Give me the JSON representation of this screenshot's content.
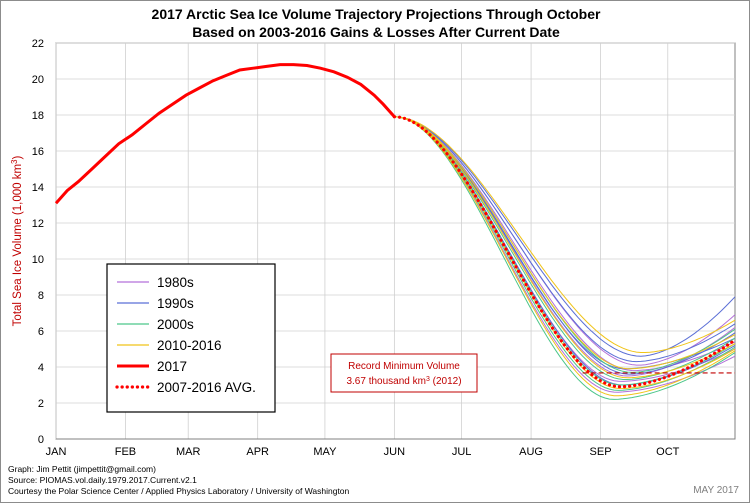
{
  "chart_data": {
    "type": "line",
    "title": [
      "2017 Arctic Sea Ice Volume Trajectory Projections Through October",
      "Based on 2003-2016 Gains & Losses After Current Date"
    ],
    "xlabel": "",
    "ylabel": "Total Sea Ice Volume  (1,000 km³)",
    "ylim": [
      0,
      22
    ],
    "yticks": [
      0,
      2,
      4,
      6,
      8,
      10,
      12,
      14,
      16,
      18,
      20,
      22
    ],
    "xlim": [
      0,
      303
    ],
    "xticks": [
      {
        "label": "JAN",
        "day": 0
      },
      {
        "label": "FEB",
        "day": 31
      },
      {
        "label": "MAR",
        "day": 59
      },
      {
        "label": "APR",
        "day": 90
      },
      {
        "label": "MAY",
        "day": 120
      },
      {
        "label": "JUN",
        "day": 151
      },
      {
        "label": "JUL",
        "day": 181
      },
      {
        "label": "AUG",
        "day": 212
      },
      {
        "label": "SEP",
        "day": 243
      },
      {
        "label": "OCT",
        "day": 273
      }
    ],
    "series_2017": {
      "name": "2017",
      "color": "#ff0000",
      "points": [
        [
          0,
          13.1
        ],
        [
          5,
          13.8
        ],
        [
          10,
          14.3
        ],
        [
          16,
          15.0
        ],
        [
          22,
          15.7
        ],
        [
          28,
          16.4
        ],
        [
          34,
          16.9
        ],
        [
          40,
          17.5
        ],
        [
          46,
          18.1
        ],
        [
          52,
          18.6
        ],
        [
          58,
          19.1
        ],
        [
          64,
          19.5
        ],
        [
          70,
          19.9
        ],
        [
          76,
          20.2
        ],
        [
          82,
          20.5
        ],
        [
          88,
          20.6
        ],
        [
          94,
          20.7
        ],
        [
          100,
          20.8
        ],
        [
          106,
          20.8
        ],
        [
          112,
          20.75
        ],
        [
          118,
          20.6
        ],
        [
          124,
          20.4
        ],
        [
          130,
          20.1
        ],
        [
          136,
          19.7
        ],
        [
          142,
          19.1
        ],
        [
          146,
          18.6
        ],
        [
          151,
          17.9
        ]
      ]
    },
    "projection_start": {
      "day": 151,
      "value": 17.9
    },
    "average_projection": {
      "name": "2007-2016 AVG.",
      "color": "#ff0000",
      "min_day": 252,
      "min_value": 2.9,
      "end_value": 5.5
    },
    "projection_groups": [
      {
        "name": "1980s",
        "color": "#b370d9",
        "min_values": [
          3.5,
          3.8,
          2.6,
          4.1,
          3.2
        ],
        "min_days": [
          255,
          258,
          250,
          260,
          252
        ],
        "end_values": [
          6.2,
          5.4,
          4.6,
          6.9,
          5.0
        ]
      },
      {
        "name": "1990s",
        "color": "#5b6fd6",
        "min_values": [
          3.6,
          4.3,
          3.9,
          4.6,
          3.0
        ],
        "min_days": [
          256,
          259,
          254,
          261,
          253
        ],
        "end_values": [
          5.9,
          6.4,
          5.6,
          7.9,
          5.2
        ]
      },
      {
        "name": "2000s",
        "color": "#4cc68a",
        "min_values": [
          3.3,
          2.7,
          3.7,
          2.2,
          3.0
        ],
        "min_days": [
          254,
          251,
          257,
          249,
          252
        ],
        "end_values": [
          5.6,
          5.1,
          6.1,
          4.8,
          5.3
        ]
      },
      {
        "name": "2010-2016",
        "color": "#f0c419",
        "min_values": [
          3.4,
          4.8,
          2.4,
          3.9,
          2.8
        ],
        "min_days": [
          255,
          262,
          250,
          256,
          252
        ],
        "end_values": [
          5.3,
          6.6,
          4.9,
          5.8,
          5.0
        ]
      }
    ],
    "legend": [
      {
        "label": "1980s",
        "color": "#b370d9",
        "style": "thin"
      },
      {
        "label": "1990s",
        "color": "#5b6fd6",
        "style": "thin"
      },
      {
        "label": "2000s",
        "color": "#4cc68a",
        "style": "thin"
      },
      {
        "label": "2010-2016",
        "color": "#f0c419",
        "style": "thin"
      },
      {
        "label": "2017",
        "color": "#ff0000",
        "style": "thick"
      },
      {
        "label": "2007-2016 AVG.",
        "color": "#ff0000",
        "style": "dotted"
      }
    ],
    "annotation": {
      "line1": "Record Minimum Volume",
      "line2_prefix": "3.67 thousand km",
      "line2_sup": "3",
      "line2_suffix": " (2012)",
      "value": 3.67,
      "color": "#c00000"
    },
    "grid": true
  },
  "footer": {
    "line1": "Graph: Jim Pettit (jimpettit@gmail.com)",
    "line2": "Source: PIOMAS.vol.daily.1979.2017.Current.v2.1",
    "line3": "Courtesy the Polar Science Center / Applied Physics Laboratory / University of Washington",
    "stamp": "MAY 2017"
  }
}
